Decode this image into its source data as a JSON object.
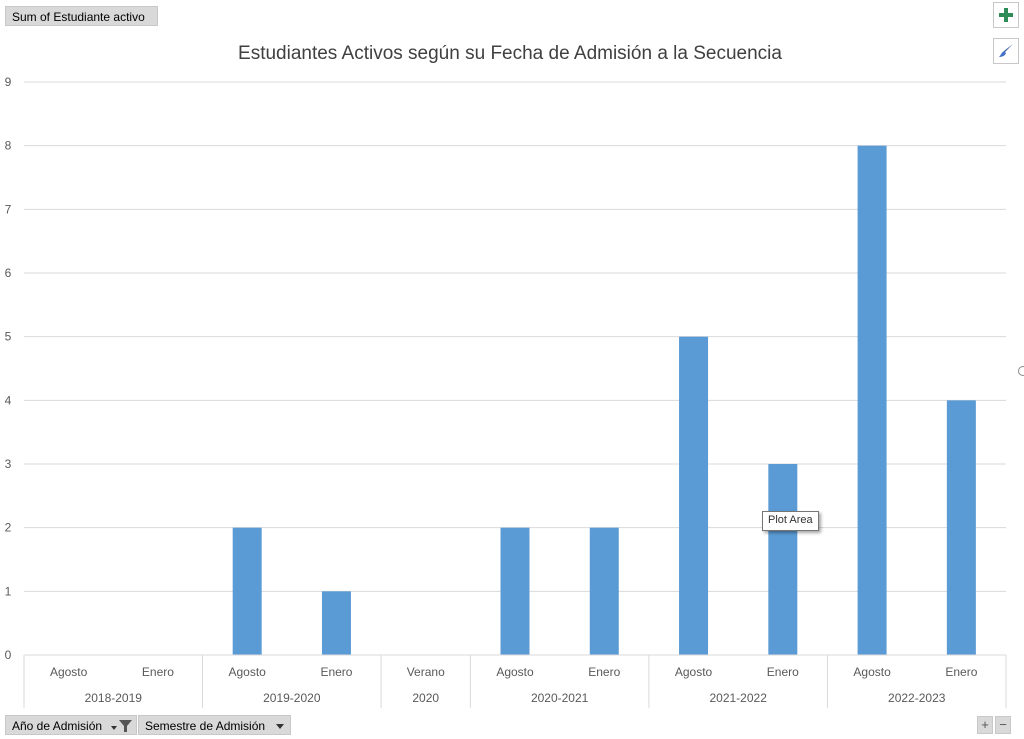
{
  "pivot": {
    "value_field": "Sum of Estudiante activo",
    "axis_fields": [
      {
        "label": "Año de Admisión",
        "icon": "filter-icon"
      },
      {
        "label": "Semestre de Admisión",
        "icon": "dropdown-arrow-icon"
      }
    ]
  },
  "side_buttons": {
    "elements": "plus-icon",
    "styles": "brush-icon"
  },
  "zoom": {
    "plus": "+",
    "minus": "−"
  },
  "tooltip": "Plot Area",
  "colors": {
    "bar": "#5b9bd5",
    "grid": "#d9d9d9",
    "text": "#595959",
    "title": "#404040"
  },
  "chart_data": {
    "type": "bar",
    "title": "Estudiantes Activos según su Fecha de Admisión a la Secuencia",
    "xlabel": "",
    "ylabel": "",
    "ylim": [
      0,
      9
    ],
    "yticks": [
      0,
      1,
      2,
      3,
      4,
      5,
      6,
      7,
      8,
      9
    ],
    "grid": true,
    "legend": "none",
    "categories": [
      "Agosto",
      "Enero",
      "Agosto",
      "Enero",
      "Verano",
      "Agosto",
      "Enero",
      "Agosto",
      "Enero",
      "Agosto",
      "Enero"
    ],
    "groups": [
      {
        "label": "2018-2019",
        "count": 2
      },
      {
        "label": "2019-2020",
        "count": 2
      },
      {
        "label": "2020",
        "count": 1
      },
      {
        "label": "2020-2021",
        "count": 2
      },
      {
        "label": "2021-2022",
        "count": 2
      },
      {
        "label": "2022-2023",
        "count": 2
      }
    ],
    "series": [
      {
        "values": [
          null,
          null,
          2,
          1,
          null,
          2,
          2,
          5,
          3,
          8,
          4
        ]
      }
    ]
  }
}
